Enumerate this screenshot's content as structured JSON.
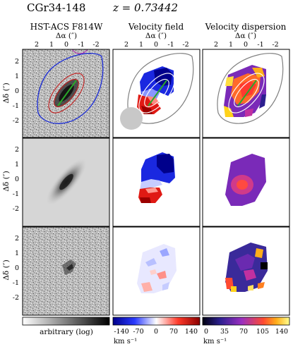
{
  "header": {
    "object_name": "CGr34-148",
    "redshift": "z = 0.73442"
  },
  "columns": [
    {
      "title": "HST-ACS F814W",
      "axis_label": "Δα (″)"
    },
    {
      "title": "Velocity field",
      "axis_label": "Δα (″)"
    },
    {
      "title": "Velocity dispersion",
      "axis_label": "Δα (″)"
    }
  ],
  "axes": {
    "y_label": "Δδ (″)",
    "x_ticks": [
      "2",
      "1",
      "0",
      "-1",
      "-2"
    ],
    "y_ticks": [
      "2",
      "1",
      "0",
      "-1",
      "-2"
    ]
  },
  "colorbars": [
    {
      "name": "arbitrary-scale",
      "label": "arbitrary (log)",
      "ticks": [],
      "unit": ""
    },
    {
      "name": "velocity-scale",
      "label": "",
      "ticks": [
        "-140",
        "-70",
        "0",
        "70",
        "140"
      ],
      "unit": "km s⁻¹"
    },
    {
      "name": "dispersion-scale",
      "label": "",
      "ticks": [
        "0",
        "35",
        "70",
        "105",
        "140"
      ],
      "unit": "km s⁻¹"
    }
  ],
  "colors": {
    "contour_blue": "#1a2bd6",
    "contour_red": "#c42020",
    "kinematic_axis": "#2aa82a",
    "psf_disc": "#c8c8c8",
    "contour_grey": "#808080"
  }
}
